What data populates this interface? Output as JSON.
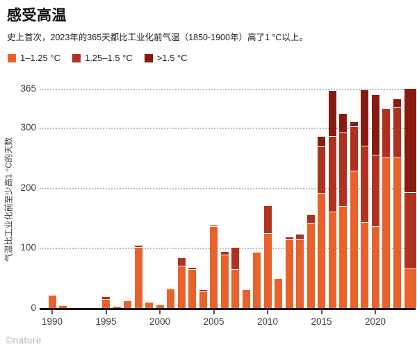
{
  "header": {
    "title": "感受高温",
    "subtitle": "史上首次，2023年的365天都比工业化前气温（1850-1900年）高了1 °C以上。"
  },
  "legend": {
    "items": [
      {
        "label": "1–1.25 °C",
        "color": "#E8622B"
      },
      {
        "label": "1.25–1.5 °C",
        "color": "#AF3220"
      },
      {
        "label": ">1.5 °C",
        "color": "#871B0F"
      }
    ]
  },
  "chart_data": {
    "type": "bar",
    "stacked": true,
    "title": "感受高温",
    "ylabel": "气温比工业化前至少高1 °C的天数",
    "xlabel": "",
    "ylim": [
      0,
      365
    ],
    "yticks": [
      0,
      100,
      200,
      300,
      365
    ],
    "xticks": [
      1990,
      1995,
      2000,
      2005,
      2010,
      2015,
      2020
    ],
    "grid": "horizontal-dotted",
    "legend_position": "top-left",
    "series": [
      {
        "name": "1–1.25 °C",
        "color": "#E8622B"
      },
      {
        "name": "1.25–1.5 °C",
        "color": "#AF3220"
      },
      {
        "name": ">1.5 °C",
        "color": "#871B0F"
      }
    ],
    "columns": [
      "year",
      "days_1_to_1.25C",
      "days_1.25_to_1.5C",
      "days_above_1.5C"
    ],
    "rows": [
      [
        1990,
        21,
        0,
        0
      ],
      [
        1991,
        3,
        0,
        0
      ],
      [
        1992,
        0,
        0,
        0
      ],
      [
        1993,
        0,
        0,
        0
      ],
      [
        1994,
        0,
        0,
        0
      ],
      [
        1995,
        14,
        4,
        0
      ],
      [
        1996,
        2,
        0,
        0
      ],
      [
        1997,
        12,
        0,
        0
      ],
      [
        1998,
        100,
        4,
        0
      ],
      [
        1999,
        9,
        0,
        0
      ],
      [
        2000,
        5,
        0,
        0
      ],
      [
        2001,
        31,
        0,
        0
      ],
      [
        2002,
        69,
        14,
        0
      ],
      [
        2003,
        64,
        3,
        0
      ],
      [
        2004,
        27,
        3,
        0
      ],
      [
        2005,
        135,
        3,
        0
      ],
      [
        2006,
        88,
        6,
        0
      ],
      [
        2007,
        63,
        37,
        0
      ],
      [
        2008,
        30,
        0,
        0
      ],
      [
        2009,
        92,
        2,
        0
      ],
      [
        2010,
        124,
        46,
        0
      ],
      [
        2011,
        48,
        0,
        0
      ],
      [
        2012,
        113,
        5,
        0
      ],
      [
        2013,
        113,
        10,
        0
      ],
      [
        2014,
        140,
        15,
        0
      ],
      [
        2015,
        190,
        78,
        17
      ],
      [
        2016,
        159,
        126,
        76
      ],
      [
        2017,
        169,
        122,
        33
      ],
      [
        2018,
        227,
        75,
        7
      ],
      [
        2019,
        142,
        127,
        94
      ],
      [
        2020,
        135,
        119,
        101
      ],
      [
        2021,
        250,
        82,
        0
      ],
      [
        2022,
        250,
        84,
        14
      ],
      [
        2023,
        65,
        127,
        173
      ]
    ]
  },
  "footer": {
    "credit": "©nature"
  }
}
